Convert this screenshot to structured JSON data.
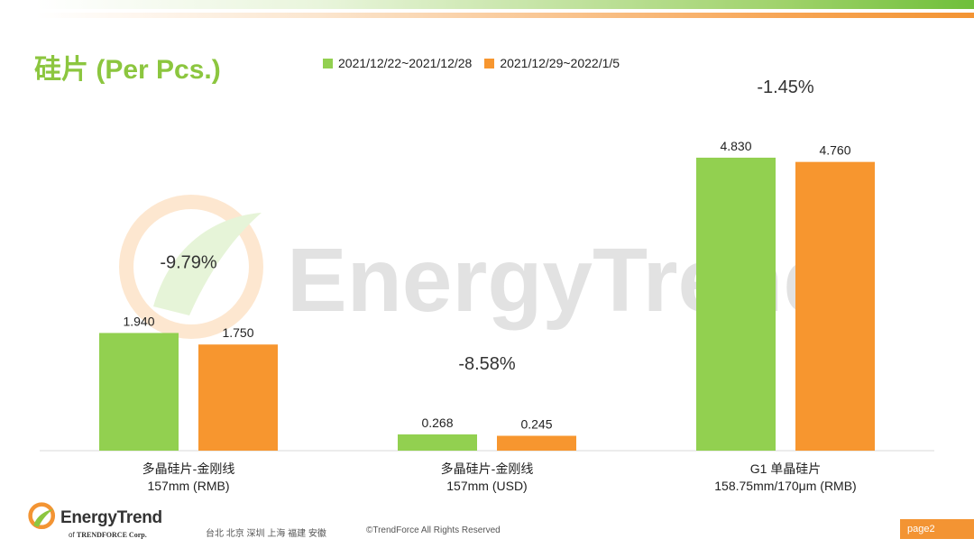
{
  "title": "硅片 (Per Pcs.)",
  "watermark": "EnergyTrend",
  "colors": {
    "series1": "#92d050",
    "series2": "#f7962f",
    "title": "#8cc63f"
  },
  "chart_data": {
    "type": "bar",
    "categories": [
      [
        "多晶硅片-金刚线",
        "157mm (RMB)"
      ],
      [
        "多晶硅片-金刚线",
        "157mm (USD)"
      ],
      [
        "G1 单晶硅片",
        "158.75mm/170μm (RMB)"
      ]
    ],
    "series": [
      {
        "name": "2021/12/22~2021/12/28",
        "values": [
          1.94,
          0.268,
          4.83
        ],
        "labels": [
          "1.940",
          "0.268",
          "4.830"
        ]
      },
      {
        "name": "2021/12/29~2022/1/5",
        "values": [
          1.75,
          0.245,
          4.76
        ],
        "labels": [
          "1.750",
          "0.245",
          "4.760"
        ]
      }
    ],
    "annotations": [
      "-9.79%",
      "-8.58%",
      "-1.45%"
    ],
    "grid": false,
    "legend": "top"
  },
  "footer": {
    "brand": "EnergyTrend",
    "brand_sub_prefix": "of",
    "brand_sub": "TRENDFORCE Corp.",
    "cities": "台北  北京  深圳  上海  福建  安徽",
    "copyright": "©TrendForce All Rights Reserved",
    "page": "page2"
  }
}
